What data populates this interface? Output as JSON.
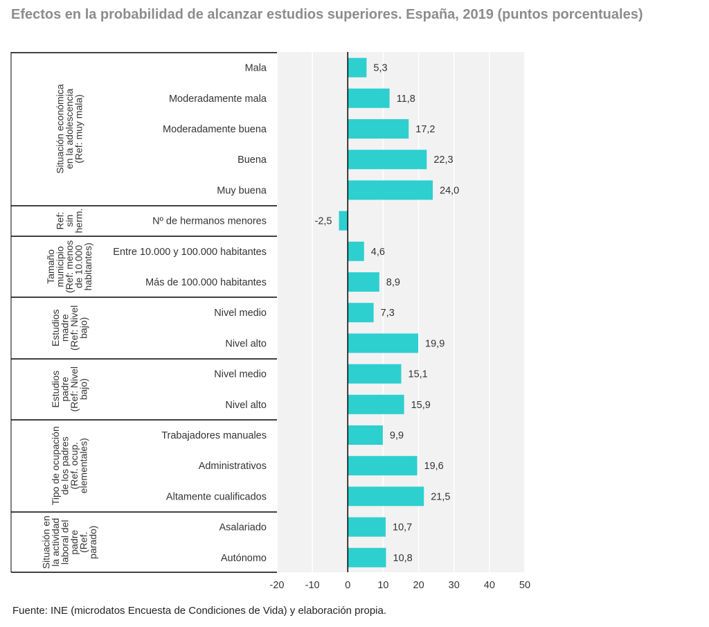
{
  "title": "Efectos en la probabilidad de alcanzar estudios superiores. España, 2019 (puntos porcentuales)",
  "source": "Fuente: INE (microdatos Encuesta de Condiciones de Vida) y elaboración propia.",
  "colors": {
    "bar": "#2ecfcf",
    "grid": "#ffffff",
    "plot_bg": "#f2f2f2",
    "zero_line": "#000000"
  },
  "chart_data": {
    "type": "bar",
    "orientation": "horizontal",
    "xlim": [
      -20,
      50
    ],
    "xticks": [
      -20,
      -10,
      0,
      10,
      20,
      30,
      40,
      50
    ],
    "xtick_labels": [
      "-20",
      "-10",
      "0",
      "10",
      "20",
      "30",
      "40",
      "50"
    ],
    "grid": true,
    "groups": [
      {
        "label": [
          "Situación económica",
          "en la adolescencia",
          "(Ref: muy mala)"
        ],
        "items": [
          {
            "label": "Mala",
            "value": 5.3,
            "value_label": "5,3"
          },
          {
            "label": "Moderadamente mala",
            "value": 11.8,
            "value_label": "11,8"
          },
          {
            "label": "Moderadamente buena",
            "value": 17.2,
            "value_label": "17,2"
          },
          {
            "label": "Buena",
            "value": 22.3,
            "value_label": "22,3"
          },
          {
            "label": "Muy buena",
            "value": 24.0,
            "value_label": "24,0"
          }
        ]
      },
      {
        "label": [
          "Ref:",
          "sin",
          "herm."
        ],
        "items": [
          {
            "label": "Nº de hermanos menores",
            "value": -2.5,
            "value_label": "-2,5"
          }
        ]
      },
      {
        "label": [
          "Tamaño",
          "municipio",
          "(Ref: menos",
          "de 10.000",
          "habitantes)"
        ],
        "items": [
          {
            "label": "Entre 10.000 y 100.000 habitantes",
            "value": 4.6,
            "value_label": "4,6"
          },
          {
            "label": "Más de 100.000 habitantes",
            "value": 8.9,
            "value_label": "8,9"
          }
        ]
      },
      {
        "label": [
          "Estudios",
          "madre",
          "(Ref: Nivel",
          "bajo)"
        ],
        "items": [
          {
            "label": "Nivel medio",
            "value": 7.3,
            "value_label": "7,3"
          },
          {
            "label": "Nivel alto",
            "value": 19.9,
            "value_label": "19,9"
          }
        ]
      },
      {
        "label": [
          "Estudios",
          "padre",
          "(Ref: Nivel",
          "bajo)"
        ],
        "items": [
          {
            "label": "Nivel medio",
            "value": 15.1,
            "value_label": "15,1"
          },
          {
            "label": "Nivel alto",
            "value": 15.9,
            "value_label": "15,9"
          }
        ]
      },
      {
        "label": [
          "Tipo de ocupación",
          "de los padres",
          "(Ref. ocup.",
          "elementales)"
        ],
        "items": [
          {
            "label": "Trabajadores manuales",
            "value": 9.9,
            "value_label": "9,9"
          },
          {
            "label": "Administrativos",
            "value": 19.6,
            "value_label": "19,6"
          },
          {
            "label": "Altamente cualificados",
            "value": 21.5,
            "value_label": "21,5"
          }
        ]
      },
      {
        "label": [
          "Situación en",
          "la actividad",
          "laboral del",
          "padre",
          "(Ref.",
          "parado)"
        ],
        "items": [
          {
            "label": "Asalariado",
            "value": 10.7,
            "value_label": "10,7"
          },
          {
            "label": "Autónomo",
            "value": 10.8,
            "value_label": "10,8"
          }
        ]
      }
    ]
  }
}
